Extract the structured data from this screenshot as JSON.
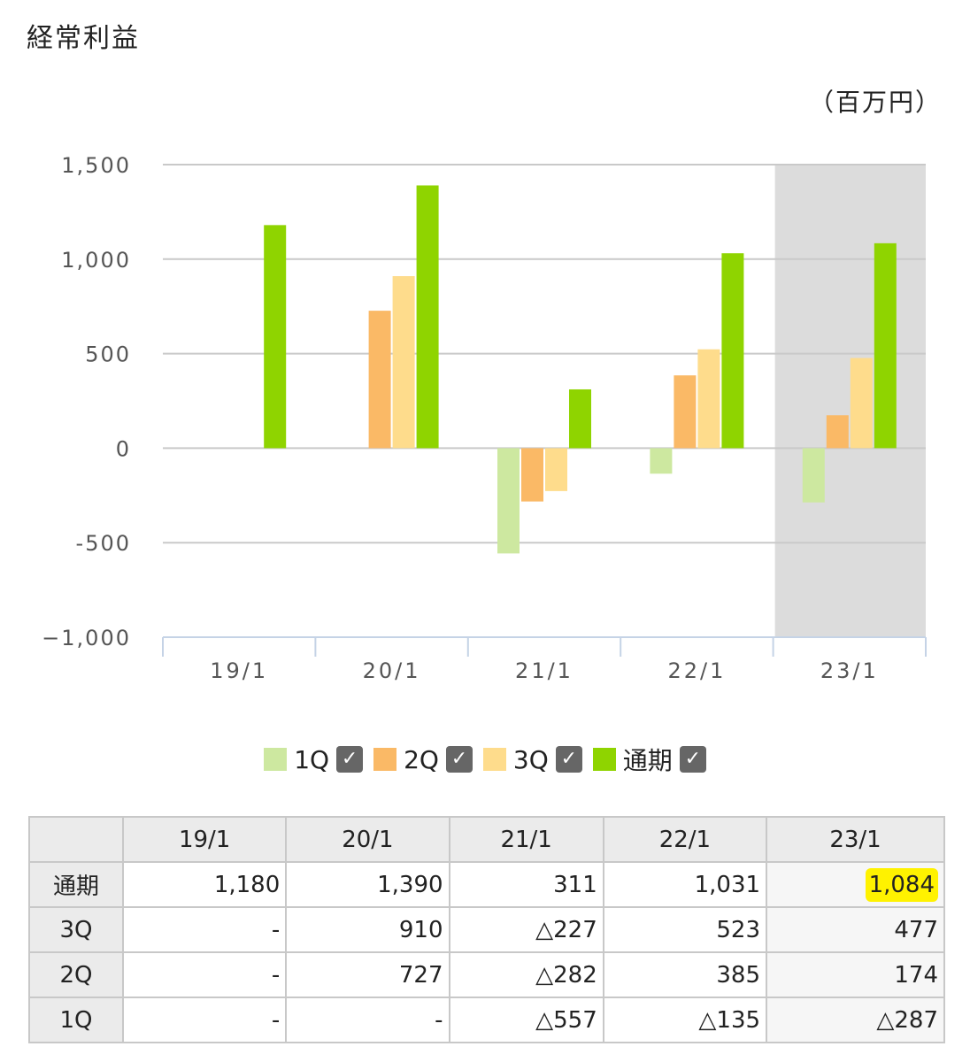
{
  "title": "経常利益",
  "unit": "（百万円）",
  "chart_data": {
    "type": "bar",
    "categories": [
      "19/1",
      "20/1",
      "21/1",
      "22/1",
      "23/1"
    ],
    "series": [
      {
        "name": "1Q",
        "color": "#cde8a0",
        "values": [
          null,
          null,
          -557,
          -135,
          -287
        ]
      },
      {
        "name": "2Q",
        "color": "#fab966",
        "values": [
          null,
          727,
          -282,
          385,
          174
        ]
      },
      {
        "name": "3Q",
        "color": "#fedc8c",
        "values": [
          null,
          910,
          -227,
          523,
          477
        ]
      },
      {
        "name": "通期",
        "color": "#8fd400",
        "values": [
          1180,
          1390,
          311,
          1031,
          1084
        ]
      }
    ],
    "ylim": [
      -1000,
      1500
    ],
    "yticks": [
      -1000,
      -500,
      0,
      500,
      1000,
      1500
    ],
    "ytick_labels": [
      "−1,000",
      "-500",
      "0",
      "500",
      "1,000",
      "1,500"
    ],
    "highlighted_category": "23/1",
    "grid": true,
    "legend_placement": "bottom"
  },
  "legend": {
    "items": [
      {
        "label": "1Q",
        "color": "#cde8a0"
      },
      {
        "label": "2Q",
        "color": "#fab966"
      },
      {
        "label": "3Q",
        "color": "#fedc8c"
      },
      {
        "label": "通期",
        "color": "#8fd400"
      }
    ],
    "check_icon": "check-icon"
  },
  "table": {
    "headers": [
      "",
      "19/1",
      "20/1",
      "21/1",
      "22/1",
      "23/1"
    ],
    "rows": [
      {
        "label": "通期",
        "cells": [
          "1,180",
          "1,390",
          "311",
          "1,031",
          "1,084"
        ]
      },
      {
        "label": "3Q",
        "cells": [
          "-",
          "910",
          "△227",
          "523",
          "477"
        ]
      },
      {
        "label": "2Q",
        "cells": [
          "-",
          "727",
          "△282",
          "385",
          "174"
        ]
      },
      {
        "label": "1Q",
        "cells": [
          "-",
          "-",
          "△557",
          "△135",
          "△287"
        ]
      }
    ],
    "highlight_color": "#fff200"
  }
}
